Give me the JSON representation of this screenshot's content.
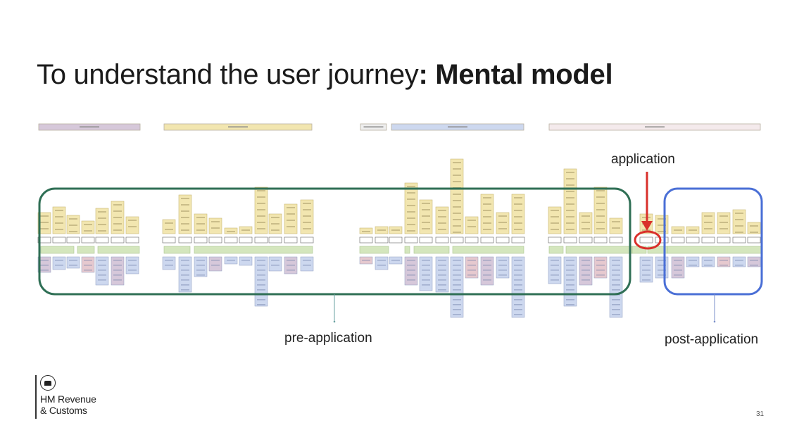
{
  "slide": {
    "title_prefix": "To understand the user journey",
    "title_emphasis": ": Mental model",
    "page_number": "31"
  },
  "annotations": {
    "application": "application",
    "pre_application": "pre-application",
    "post_application": "post-application"
  },
  "logo": {
    "icon": "crown-crest-icon",
    "line1": "HM Revenue",
    "line2": "& Customs"
  },
  "colors": {
    "green_frame": "#2f6f55",
    "blue_frame": "#4a6fd6",
    "red_marker": "#d9302b",
    "yellow_card": "#f2e6b0",
    "green_band": "#d4e6bd",
    "blue_card": "#cdd8ef",
    "purple_card": "#d6c8da",
    "pink_card": "#e6c9cf"
  }
}
